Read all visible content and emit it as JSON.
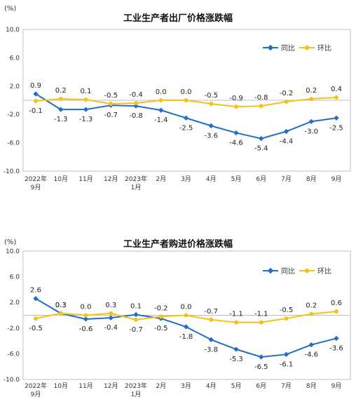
{
  "chart_data": [
    {
      "type": "line",
      "unit_label": "(%)",
      "title": "工业生产者出厂价格涨跌幅",
      "ylim": [
        -10,
        10
      ],
      "y_ticks": [
        "10.0",
        "6.0",
        "2.0",
        "-2.0",
        "-6.0",
        "-10.0"
      ],
      "y_tick_values": [
        10,
        6,
        2,
        -2,
        -6,
        -10
      ],
      "categories": [
        "2022年 9月",
        "10月",
        "11月",
        "12月",
        "2023年 1月",
        "2月",
        "3月",
        "4月",
        "5月",
        "6月",
        "7月",
        "8月",
        "9月"
      ],
      "legend_position": "top-right",
      "series": [
        {
          "name": "同比",
          "color": "#1f6fc6",
          "values": [
            0.9,
            -1.3,
            -1.3,
            -0.7,
            -0.8,
            -1.4,
            -2.5,
            -3.6,
            -4.6,
            -5.4,
            -4.4,
            -3.0,
            -2.5
          ]
        },
        {
          "name": "环比",
          "color": "#f5c218",
          "values": [
            -0.1,
            0.2,
            0.1,
            -0.5,
            -0.4,
            0.0,
            0.0,
            -0.5,
            -0.9,
            -0.8,
            -0.2,
            0.2,
            0.4
          ]
        }
      ],
      "series_labels": [
        [
          "0.9",
          "-1.3",
          "-1.3",
          "-0.7",
          "-0.8",
          "-1.4",
          "-2.5",
          "-3.6",
          "-4.6",
          "-5.4",
          "-4.4",
          "-3.0",
          "-2.5"
        ],
        [
          "-0.1",
          "0.2",
          "0.1",
          "-0.5",
          "-0.4",
          "0.0",
          "0.0",
          "-0.5",
          "-0.9",
          "-0.8",
          "-0.2",
          "0.2",
          "0.4"
        ]
      ]
    },
    {
      "type": "line",
      "unit_label": "(%)",
      "title": "工业生产者购进价格涨跌幅",
      "ylim": [
        -10,
        10
      ],
      "y_ticks": [
        "10.0",
        "6.0",
        "2.0",
        "-2.0",
        "-6.0",
        "-10.0"
      ],
      "y_tick_values": [
        10,
        6,
        2,
        -2,
        -6,
        -10
      ],
      "categories": [
        "2022年 9月",
        "10月",
        "11月",
        "12月",
        "2023年 1月",
        "2月",
        "3月",
        "4月",
        "5月",
        "6月",
        "7月",
        "8月",
        "9月"
      ],
      "legend_position": "top-right",
      "series": [
        {
          "name": "同比",
          "color": "#1f6fc6",
          "values": [
            2.6,
            0.3,
            -0.6,
            -0.4,
            0.1,
            -0.5,
            -1.8,
            -3.8,
            -5.3,
            -6.5,
            -6.1,
            -4.6,
            -3.6
          ]
        },
        {
          "name": "环比",
          "color": "#f5c218",
          "values": [
            -0.5,
            0.3,
            0.0,
            0.3,
            -0.7,
            -0.2,
            0.0,
            -0.7,
            -1.1,
            -1.1,
            -0.5,
            0.2,
            0.6
          ]
        }
      ],
      "series_labels": [
        [
          "2.6",
          "0.3",
          "-0.6",
          "-0.4",
          "0.1",
          "-0.5",
          "-1.8",
          "-3.8",
          "-5.3",
          "-6.5",
          "-6.1",
          "-4.6",
          "-3.6"
        ],
        [
          "-0.5",
          "0.3",
          "0.0",
          "0.3",
          "-0.7",
          "-0.2",
          "0.0",
          "-0.7",
          "-1.1",
          "-1.1",
          "-0.5",
          "0.2",
          "0.6"
        ]
      ]
    }
  ]
}
